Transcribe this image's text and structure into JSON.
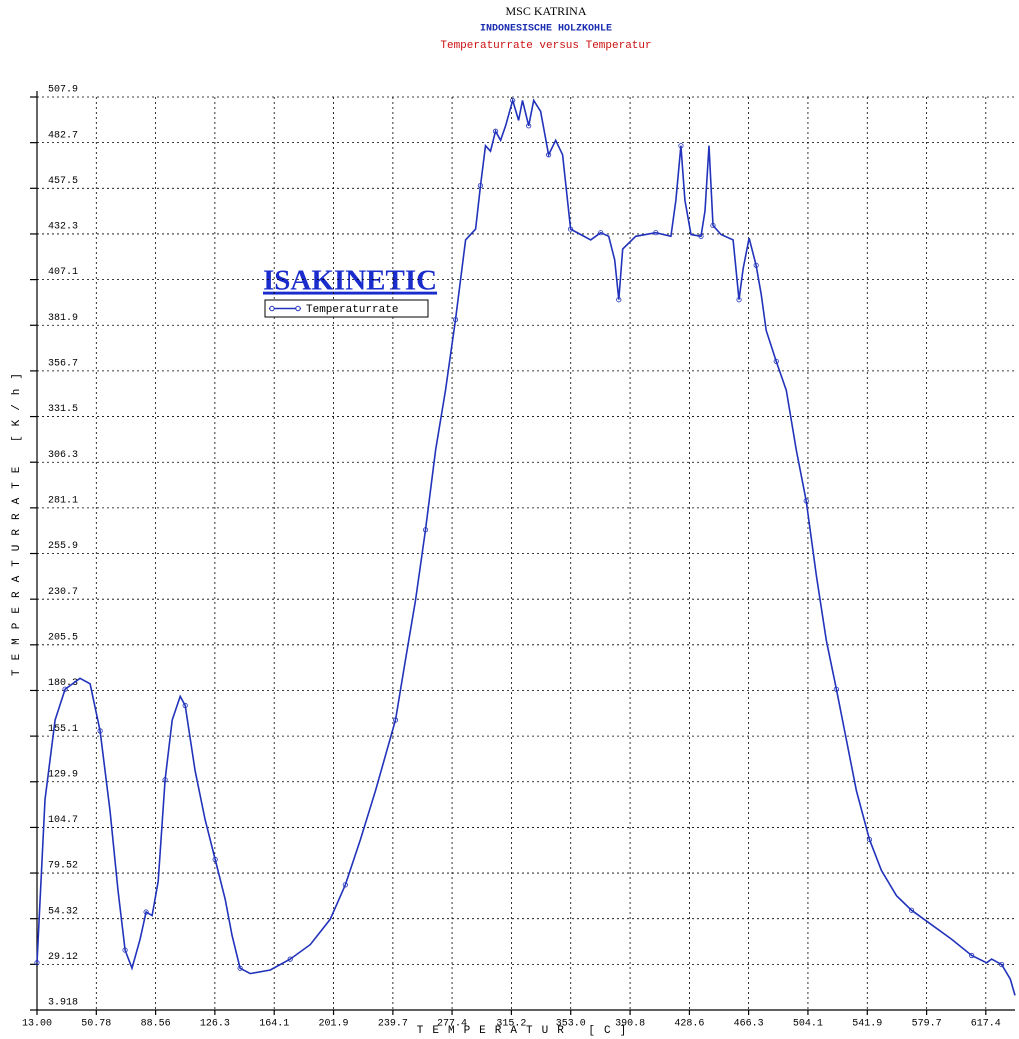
{
  "chart_data": {
    "type": "line",
    "title": "MSC KATRINA",
    "subtitle": "INDONESISCHE HOLZKOHLE",
    "caption": "Temperaturrate versus Temperatur",
    "annotation": "ISAKINETIC",
    "x_label": "TEMPERATUR [C]",
    "y_label": "TEMPERATURRATE [K/h]",
    "grid": true,
    "legend": "upper left",
    "xlim": [
      13,
      636
    ],
    "ylim": [
      3.918,
      507.9
    ],
    "xticks": [
      {
        "value": 13,
        "label": "13.00"
      },
      50.78,
      88.56,
      126.3,
      164.1,
      201.9,
      239.7,
      277.4,
      315.2,
      {
        "value": 353,
        "label": "353.0"
      },
      390.8,
      428.6,
      466.3,
      504.1,
      541.9,
      579.7,
      617.4
    ],
    "yticks": [
      3.918,
      29.12,
      54.32,
      79.52,
      104.7,
      129.9,
      155.1,
      180.3,
      205.5,
      230.7,
      255.9,
      281.1,
      306.3,
      331.5,
      356.7,
      381.9,
      407.1,
      432.3,
      457.5,
      482.7,
      507.9
    ],
    "x": [
      13,
      18.1,
      24.5,
      30.9,
      40.4,
      46.8,
      53.2,
      59.5,
      64.6,
      69.1,
      73.5,
      78.7,
      82.5,
      86.3,
      90.2,
      94.6,
      99.1,
      104.2,
      107.4,
      113.7,
      120.1,
      126.5,
      132.9,
      137.3,
      142.4,
      148.8,
      161.6,
      174.3,
      187.1,
      199.8,
      209.4,
      219,
      228.6,
      241.4,
      247.7,
      254.1,
      260.5,
      266.9,
      273.2,
      279.6,
      286,
      292.4,
      295.5,
      298.7,
      301.9,
      305.1,
      308.3,
      311.5,
      316,
      319.8,
      322.3,
      326.2,
      329.4,
      333.8,
      338.9,
      343.4,
      347.8,
      352.9,
      359.3,
      365.7,
      372.1,
      377.2,
      381,
      383.6,
      386.1,
      394.4,
      407.2,
      416.8,
      420,
      423.2,
      425.7,
      429.6,
      436,
      438.5,
      441.1,
      443.6,
      448.7,
      456.4,
      460.2,
      462.8,
      466.6,
      471.1,
      474.3,
      477.5,
      483.9,
      490.3,
      496.7,
      503,
      509.4,
      515.8,
      522.2,
      528.6,
      535,
      543.3,
      550.9,
      560.5,
      570.1,
      582.8,
      595.6,
      608.4,
      618,
      621.1,
      627.5,
      633,
      636
    ],
    "series": [
      {
        "name": "Temperaturrate",
        "color": "#2233bb",
        "values": [
          30,
          120,
          164,
          181,
          187,
          184,
          158,
          114,
          70,
          37,
          27,
          43,
          58,
          56,
          75,
          131,
          164,
          177,
          172,
          136,
          109,
          87,
          65,
          45,
          27,
          24,
          26,
          32,
          40,
          54,
          73,
          98,
          125,
          164,
          197,
          230,
          269,
          313,
          346,
          385,
          429,
          435,
          459,
          481,
          478,
          489,
          484,
          492,
          506,
          495,
          506,
          492,
          506,
          500,
          476,
          484,
          476,
          435,
          432,
          429,
          433,
          431,
          418,
          396,
          424,
          431,
          433,
          431,
          451,
          481,
          451,
          432,
          431,
          445,
          481,
          437,
          432,
          429,
          396,
          413,
          430,
          415,
          399,
          379,
          362,
          346,
          313,
          285,
          244,
          208,
          181,
          153,
          125,
          98,
          81,
          67,
          59,
          51,
          43,
          34,
          30,
          32,
          29,
          21,
          12
        ]
      }
    ]
  }
}
